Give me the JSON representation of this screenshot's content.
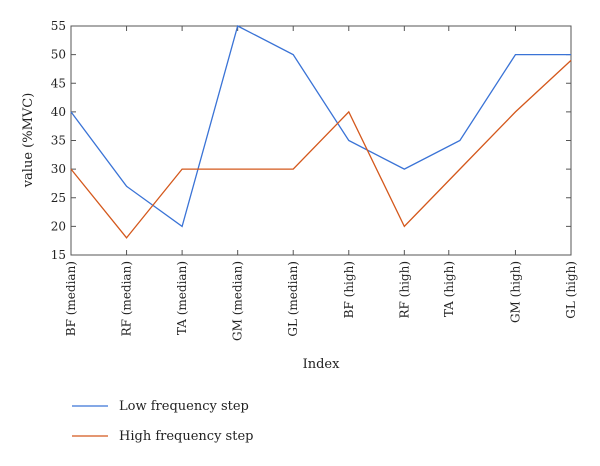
{
  "chart_data": {
    "type": "line",
    "xlabel": "Index",
    "ylabel": "value (%MVC)",
    "ylim": [
      15,
      55
    ],
    "yticks": [
      15,
      20,
      25,
      30,
      35,
      40,
      45,
      50,
      55
    ],
    "grid": false,
    "legend_placement": "bottom-left",
    "x": [
      1,
      2,
      3,
      4,
      5,
      6,
      7,
      8,
      9,
      10
    ],
    "xlim": [
      1,
      10
    ],
    "xtick_positions": [
      1,
      2,
      3,
      4,
      5,
      6,
      7,
      7.8,
      9,
      10
    ],
    "categories": [
      "BF (median)",
      "RF (median)",
      "TA (median)",
      "GM (median)",
      "GL (median)",
      "BF (high)",
      "RF (high)",
      "TA (high)",
      "GM (high)",
      "GL (high)"
    ],
    "series": [
      {
        "name": "Low frequency step",
        "color": "#3a73d6",
        "values": [
          40,
          27,
          20,
          55,
          50,
          35,
          30,
          35,
          50,
          50
        ]
      },
      {
        "name": "High frequency step",
        "color": "#d4581c",
        "values": [
          30,
          18,
          30,
          30,
          30,
          40,
          20,
          30,
          40,
          49
        ]
      }
    ]
  }
}
